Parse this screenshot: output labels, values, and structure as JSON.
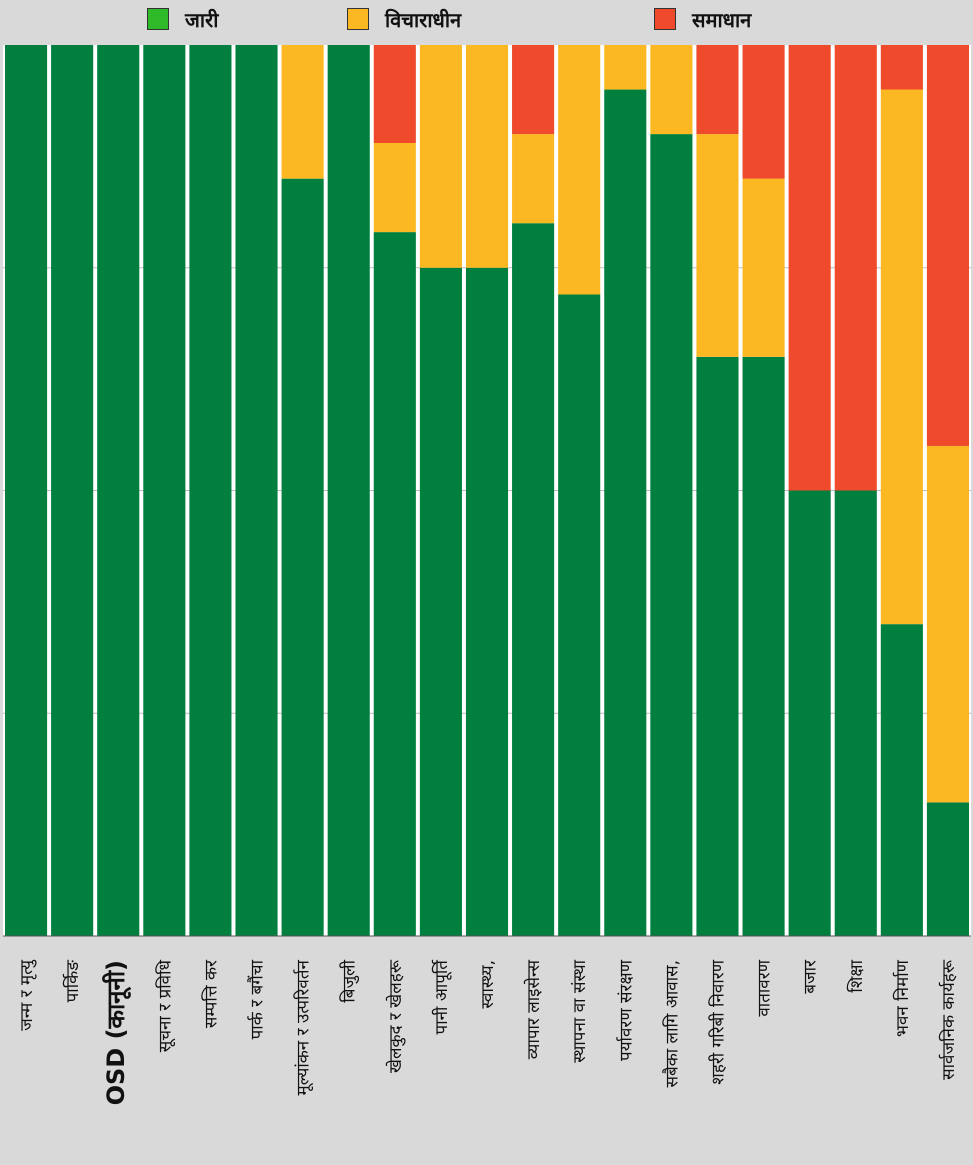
{
  "chart_data": {
    "type": "bar",
    "stacked": true,
    "normalized": true,
    "orientation": "vertical",
    "legend_position": "top",
    "grid": true,
    "ylim": [
      0,
      1
    ],
    "categories": [
      "जन्म र मृत्यु",
      "पार्किङ",
      "OSD (कानूनी)",
      "सूचना र प्रविधि",
      "सम्पत्ति कर",
      "पार्क र बगैंचा",
      "मूल्यांकन र उत्परिवर्तन",
      "बिजुली",
      "खेलकुद र खेलहरू",
      "पानी आपूर्ति",
      "स्वास्थ्य,",
      "व्यापार लाइसेन्स",
      "स्थापना वा संस्था",
      "पर्यावरण संरक्षण",
      "सबैका लागि आवास,",
      "शहरी गरिबी निवारण",
      "वातावरण",
      "बजार",
      "शिक्षा",
      "भवन निर्माण",
      "सार्वजनिक कार्यहरू"
    ],
    "series": [
      {
        "name": "जारी",
        "color": "#007f3e",
        "values": [
          1.0,
          1.0,
          1.0,
          1.0,
          1.0,
          1.0,
          0.85,
          1.0,
          0.79,
          0.75,
          0.75,
          0.8,
          0.72,
          0.95,
          0.9,
          0.65,
          0.65,
          0.5,
          0.5,
          0.35,
          0.15
        ]
      },
      {
        "name": "विचाराधीन",
        "color": "#fbb823",
        "values": [
          0,
          0,
          0,
          0,
          0,
          0,
          0.15,
          0,
          0.1,
          0.25,
          0.25,
          0.1,
          0.28,
          0.05,
          0.1,
          0.25,
          0.2,
          0,
          0,
          0.6,
          0.4
        ]
      },
      {
        "name": "समाधान",
        "color": "#ee4a2b",
        "values": [
          0,
          0,
          0,
          0,
          0,
          0,
          0,
          0,
          0.11,
          0,
          0,
          0.1,
          0,
          0,
          0,
          0.1,
          0.15,
          0.5,
          0.5,
          0.05,
          0.45
        ]
      }
    ],
    "legend_swatch_colors": [
      "#2fba2a",
      "#fbb823",
      "#ee4a2b"
    ]
  }
}
